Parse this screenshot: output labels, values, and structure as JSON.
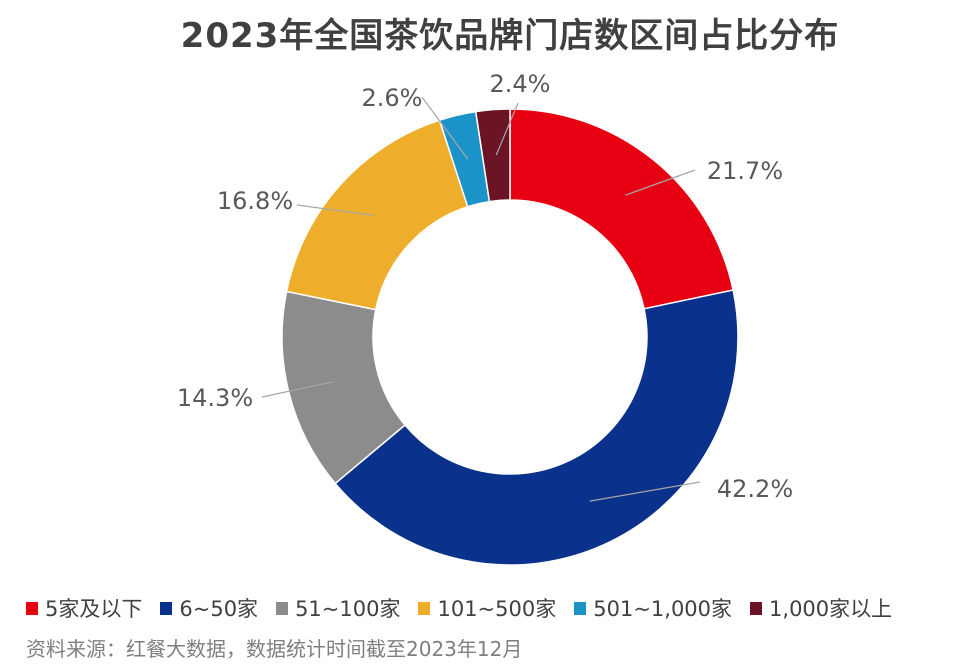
{
  "chart_data": {
    "type": "pie",
    "subtype": "donut",
    "title": "2023年全国茶饮品牌门店数区间占比分布",
    "categories": [
      "5家及以下",
      "6~50家",
      "51~100家",
      "101~500家",
      "501~1,000家",
      "1,000家以上"
    ],
    "values": [
      21.7,
      42.2,
      14.3,
      16.8,
      2.6,
      2.4
    ],
    "data_labels": [
      "21.7%",
      "42.2%",
      "14.3%",
      "16.8%",
      "2.6%",
      "2.4%"
    ],
    "colors": [
      "#E60012",
      "#0A318C",
      "#8C8C8C",
      "#EEAD2B",
      "#1B93C9",
      "#6B1426"
    ],
    "start": "12 o'clock, clockwise",
    "legend_position": "bottom",
    "source": "资料来源：红餐大数据，数据统计时间截至2023年12月"
  }
}
